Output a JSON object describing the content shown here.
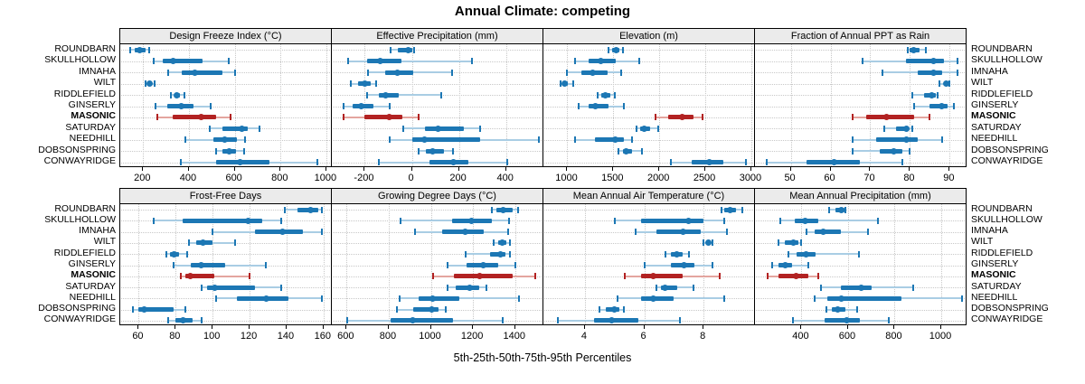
{
  "title": "Annual Climate: competing",
  "caption": "5th-25th-50th-75th-95th Percentiles",
  "sites": [
    "ROUNDBARN",
    "SKULLHOLLOW",
    "IMNAHA",
    "WILT",
    "RIDDLEFIELD",
    "GINSERLY",
    "MASONIC",
    "SATURDAY",
    "NEEDHILL",
    "DOBSONSPRING",
    "CONWAYRIDGE"
  ],
  "highlight_site": "MASONIC",
  "colors": {
    "normal": "#1c77b4",
    "normal_light": "#a9cde4",
    "highlight": "#b22222",
    "highlight_light": "#e4a59f",
    "strip_bg": "#ebebeb",
    "grid": "#c8c8c8"
  },
  "chart_data": [
    {
      "type": "dotplot-percentiles",
      "title": "Design Freeze Index (°C)",
      "row": "top",
      "xlim": [
        100,
        1020
      ],
      "ticks": [
        200,
        400,
        600,
        800,
        1000
      ],
      "percentiles": [
        "p5",
        "p25",
        "p50",
        "p75",
        "p95"
      ],
      "values": [
        [
          145,
          165,
          185,
          210,
          225
        ],
        [
          245,
          285,
          330,
          460,
          575
        ],
        [
          310,
          370,
          425,
          545,
          600
        ],
        [
          210,
          220,
          230,
          240,
          250
        ],
        [
          320,
          335,
          345,
          360,
          380
        ],
        [
          255,
          305,
          365,
          420,
          495
        ],
        [
          260,
          330,
          455,
          520,
          580
        ],
        [
          490,
          545,
          630,
          655,
          710
        ],
        [
          385,
          505,
          555,
          610,
          645
        ],
        [
          520,
          545,
          575,
          605,
          640
        ],
        [
          365,
          520,
          625,
          750,
          960
        ]
      ]
    },
    {
      "type": "dotplot-percentiles",
      "title": "Effective Precipitation (mm)",
      "row": "top",
      "xlim": [
        -340,
        555
      ],
      "ticks": [
        -200,
        0,
        200,
        400
      ],
      "percentiles": [
        "p5",
        "p25",
        "p50",
        "p75",
        "p95"
      ],
      "values": [
        [
          -90,
          -60,
          -15,
          0,
          10
        ],
        [
          -270,
          -190,
          -135,
          -45,
          255
        ],
        [
          -185,
          -115,
          -60,
          5,
          170
        ],
        [
          -260,
          -230,
          -200,
          -175,
          -150
        ],
        [
          -190,
          -140,
          -110,
          -55,
          125
        ],
        [
          -290,
          -250,
          -215,
          -165,
          -95
        ],
        [
          -290,
          -200,
          -95,
          -40,
          30
        ],
        [
          -35,
          55,
          110,
          220,
          290
        ],
        [
          -95,
          0,
          55,
          290,
          540
        ],
        [
          30,
          60,
          90,
          135,
          175
        ],
        [
          -140,
          75,
          175,
          240,
          405
        ]
      ]
    },
    {
      "type": "dotplot-percentiles",
      "title": "Elevation (m)",
      "row": "top",
      "xlim": [
        740,
        3030
      ],
      "ticks": [
        1000,
        1500,
        2000,
        2500,
        3000
      ],
      "percentiles": [
        "p5",
        "p25",
        "p50",
        "p75",
        "p95"
      ],
      "values": [
        [
          1450,
          1490,
          1530,
          1570,
          1600
        ],
        [
          1080,
          1230,
          1360,
          1530,
          1780
        ],
        [
          1000,
          1150,
          1280,
          1440,
          1590
        ],
        [
          930,
          950,
          975,
          1010,
          1060
        ],
        [
          1330,
          1370,
          1410,
          1470,
          1520
        ],
        [
          1120,
          1230,
          1310,
          1450,
          1610
        ],
        [
          1960,
          2100,
          2250,
          2370,
          2470
        ],
        [
          1750,
          1790,
          1840,
          1900,
          1990
        ],
        [
          1080,
          1300,
          1520,
          1610,
          1700
        ],
        [
          1560,
          1600,
          1640,
          1700,
          1810
        ],
        [
          2130,
          2350,
          2540,
          2700,
          2940
        ]
      ]
    },
    {
      "type": "dotplot-percentiles",
      "title": "Fraction of Annual PPT as Rain",
      "row": "top",
      "xlim": [
        41,
        94
      ],
      "ticks": [
        50,
        60,
        70,
        80,
        90
      ],
      "percentiles": [
        "p5",
        "p25",
        "p50",
        "p75",
        "p95"
      ],
      "values": [
        [
          79.5,
          80,
          81,
          82.5,
          84
        ],
        [
          68,
          79,
          86,
          88.5,
          92
        ],
        [
          73,
          82,
          86,
          88,
          92
        ],
        [
          87.5,
          88.5,
          89,
          89.5,
          90
        ],
        [
          80.5,
          83.5,
          85.5,
          86.5,
          87
        ],
        [
          81,
          85,
          88,
          89.5,
          91
        ],
        [
          65.5,
          69,
          74,
          81,
          85
        ],
        [
          73.5,
          76.5,
          79,
          79.5,
          80.5
        ],
        [
          65.5,
          71.5,
          79,
          82,
          88
        ],
        [
          65.5,
          72.5,
          76,
          78,
          80
        ],
        [
          44,
          54,
          61,
          67.5,
          78
        ]
      ]
    },
    {
      "type": "dotplot-percentiles",
      "title": "Frost-Free Days",
      "row": "bottom",
      "xlim": [
        50,
        164
      ],
      "ticks": [
        60,
        80,
        100,
        120,
        140,
        160
      ],
      "percentiles": [
        "p5",
        "p25",
        "p50",
        "p75",
        "p95"
      ],
      "values": [
        [
          139,
          146,
          153,
          157,
          159
        ],
        [
          68,
          84,
          119,
          127,
          137
        ],
        [
          100,
          123,
          138,
          149,
          159
        ],
        [
          87,
          91,
          95,
          100,
          112
        ],
        [
          75,
          77,
          79,
          82,
          86
        ],
        [
          79,
          88,
          94,
          107,
          129
        ],
        [
          83,
          85,
          88,
          101,
          120
        ],
        [
          94,
          97,
          101,
          123,
          137
        ],
        [
          102,
          113,
          129,
          141,
          159
        ],
        [
          57,
          60,
          63,
          79,
          85
        ],
        [
          76,
          80,
          84,
          89,
          94
        ]
      ]
    },
    {
      "type": "dotplot-percentiles",
      "title": "Growing Degree Days (°C)",
      "row": "bottom",
      "xlim": [
        530,
        1530
      ],
      "ticks": [
        600,
        800,
        1000,
        1200,
        1400
      ],
      "percentiles": [
        "p5",
        "p25",
        "p50",
        "p75",
        "p95"
      ],
      "values": [
        [
          1290,
          1310,
          1345,
          1390,
          1415
        ],
        [
          855,
          1100,
          1195,
          1290,
          1370
        ],
        [
          925,
          1055,
          1165,
          1250,
          1365
        ],
        [
          1300,
          1320,
          1340,
          1360,
          1375
        ],
        [
          1165,
          1280,
          1330,
          1355,
          1375
        ],
        [
          1080,
          1170,
          1250,
          1320,
          1400
        ],
        [
          1010,
          1110,
          1230,
          1390,
          1495
        ],
        [
          1080,
          1120,
          1185,
          1230,
          1265
        ],
        [
          850,
          940,
          1010,
          1135,
          1420
        ],
        [
          840,
          915,
          1005,
          1035,
          1070
        ],
        [
          605,
          810,
          915,
          1105,
          1340
        ]
      ]
    },
    {
      "type": "dotplot-percentiles",
      "title": "Mean Annual Air Temperature (°C)",
      "row": "bottom",
      "xlim": [
        2.6,
        9.7
      ],
      "ticks": [
        4,
        6,
        8
      ],
      "percentiles": [
        "p5",
        "p25",
        "p50",
        "p75",
        "p95"
      ],
      "values": [
        [
          8.6,
          8.7,
          8.9,
          9.1,
          9.3
        ],
        [
          5.0,
          5.9,
          7.5,
          8.0,
          8.7
        ],
        [
          5.7,
          6.4,
          7.3,
          7.9,
          8.8
        ],
        [
          8.0,
          8.1,
          8.15,
          8.2,
          8.3
        ],
        [
          6.7,
          6.9,
          7.1,
          7.3,
          7.5
        ],
        [
          6.0,
          6.9,
          7.35,
          7.7,
          8.3
        ],
        [
          5.35,
          5.9,
          6.3,
          7.3,
          8.55
        ],
        [
          6.4,
          6.55,
          6.7,
          7.1,
          7.65
        ],
        [
          5.1,
          5.9,
          6.3,
          7.0,
          8.7
        ],
        [
          4.5,
          4.7,
          5.0,
          5.15,
          5.3
        ],
        [
          3.1,
          4.3,
          4.9,
          5.8,
          7.2
        ]
      ]
    },
    {
      "type": "dotplot-percentiles",
      "title": "Mean Annual Precipitation (mm)",
      "row": "bottom",
      "xlim": [
        200,
        1105
      ],
      "ticks": [
        400,
        600,
        800,
        1000
      ],
      "percentiles": [
        "p5",
        "p25",
        "p50",
        "p75",
        "p95"
      ],
      "values": [
        [
          520,
          545,
          570,
          585,
          590
        ],
        [
          310,
          370,
          415,
          470,
          730
        ],
        [
          420,
          455,
          495,
          570,
          685
        ],
        [
          300,
          330,
          365,
          385,
          400
        ],
        [
          345,
          380,
          420,
          460,
          645
        ],
        [
          275,
          300,
          330,
          360,
          430
        ],
        [
          255,
          300,
          375,
          430,
          470
        ],
        [
          485,
          570,
          655,
          700,
          880
        ],
        [
          455,
          510,
          570,
          830,
          1090
        ],
        [
          505,
          530,
          555,
          590,
          640
        ],
        [
          365,
          500,
          595,
          650,
          775
        ]
      ]
    }
  ]
}
